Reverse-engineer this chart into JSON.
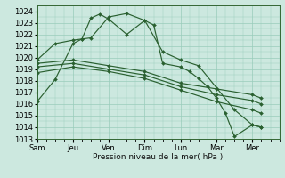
{
  "xlabel": "Pression niveau de la mer( hPa )",
  "ylim": [
    1013,
    1024.5
  ],
  "yticks": [
    1013,
    1014,
    1015,
    1016,
    1017,
    1018,
    1019,
    1020,
    1021,
    1022,
    1023,
    1024
  ],
  "xtick_labels": [
    "Sam",
    "Jeu",
    "Ven",
    "Dim",
    "Lun",
    "Mar",
    "Mer"
  ],
  "xtick_positions": [
    0,
    2,
    4,
    6,
    8,
    10,
    12
  ],
  "xmin": 0,
  "xmax": 13.5,
  "background_color": "#cce8df",
  "grid_color": "#99ccbb",
  "line_color": "#2a6030",
  "lines": [
    {
      "x": [
        0,
        1,
        2,
        2.5,
        3,
        3.5,
        4,
        5,
        6,
        6.5,
        7,
        8,
        8.5,
        9,
        9.5,
        10,
        10.5,
        11,
        12,
        12.5
      ],
      "y": [
        1016.2,
        1018.1,
        1021.2,
        1021.6,
        1023.4,
        1023.75,
        1023.3,
        1022.0,
        1023.2,
        1022.8,
        1019.5,
        1019.2,
        1018.8,
        1018.2,
        1017.5,
        1016.5,
        1015.2,
        1013.2,
        1014.2,
        1014.0
      ]
    },
    {
      "x": [
        0,
        1,
        2,
        2.5,
        3,
        4,
        5,
        6,
        7,
        8,
        9,
        10,
        11,
        12,
        12.5
      ],
      "y": [
        1019.8,
        1021.2,
        1021.5,
        1021.6,
        1021.7,
        1023.5,
        1023.8,
        1023.2,
        1020.5,
        1019.8,
        1019.3,
        1017.4,
        1015.5,
        1014.2,
        1014.0
      ]
    },
    {
      "x": [
        0,
        2,
        4,
        6,
        8,
        10,
        12,
        12.5
      ],
      "y": [
        1019.5,
        1019.8,
        1019.3,
        1018.8,
        1017.8,
        1017.3,
        1016.8,
        1016.5
      ]
    },
    {
      "x": [
        0,
        2,
        4,
        6,
        8,
        10,
        12,
        12.5
      ],
      "y": [
        1019.2,
        1019.5,
        1019.0,
        1018.5,
        1017.5,
        1016.8,
        1016.3,
        1016.0
      ]
    },
    {
      "x": [
        0,
        2,
        4,
        6,
        8,
        10,
        12,
        12.5
      ],
      "y": [
        1018.7,
        1019.2,
        1018.8,
        1018.2,
        1017.2,
        1016.2,
        1015.5,
        1015.2
      ]
    }
  ]
}
